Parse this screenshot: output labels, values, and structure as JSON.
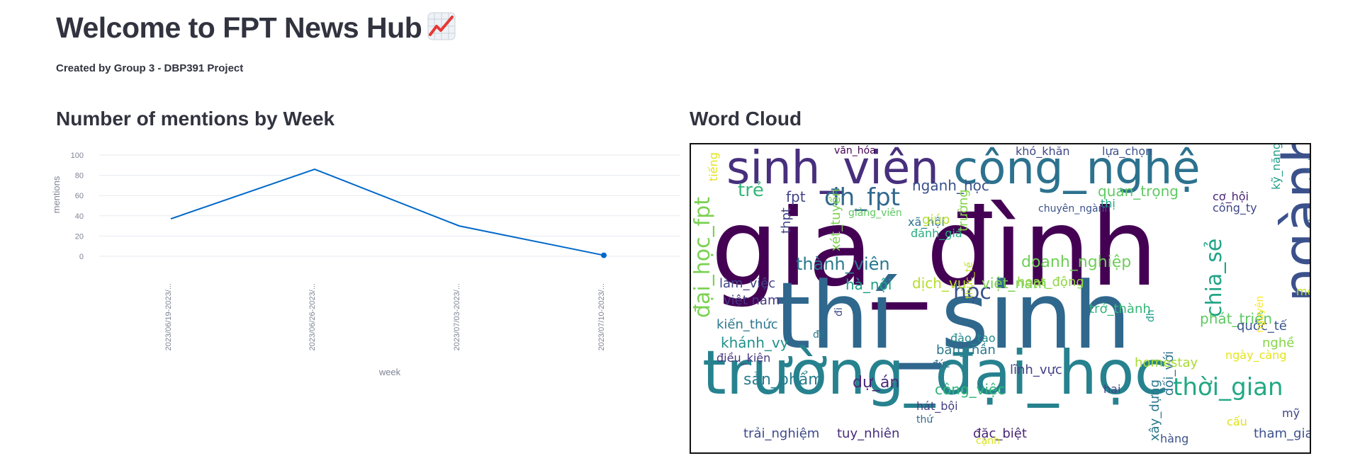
{
  "header": {
    "title": "Welcome to FPT News Hub",
    "emoji_icon": "chart-increasing-icon",
    "subtitle": "Created by Group 3 - DBP391 Project"
  },
  "chart_section": {
    "title": "Number of mentions by Week"
  },
  "wordcloud_section": {
    "title": "Word Cloud"
  },
  "chart_data": {
    "type": "line",
    "x": [
      "2023/06/19-2023/...",
      "2023/06/26-2023/...",
      "2023/07/03-2023/...",
      "2023/07/10-2023/..."
    ],
    "series": [
      {
        "values": [
          37,
          86,
          30,
          1
        ],
        "color": "#0068c9"
      }
    ],
    "xlabel": "week",
    "ylabel": "mentions",
    "ylim": [
      0,
      100
    ],
    "yticks": [
      0,
      20,
      40,
      60,
      80,
      100
    ],
    "grid": true,
    "highlight_last_point": true
  },
  "wordcloud": {
    "words": [
      {
        "t": "gia_đình",
        "c": "#440154"
      },
      {
        "t": "thí_sinh",
        "c": "#30678d"
      },
      {
        "t": "trường_đại_học",
        "c": "#26828e"
      },
      {
        "t": "sinh_viên",
        "c": "#472f7d"
      },
      {
        "t": "công_nghệ",
        "c": "#2c728e"
      },
      {
        "t": "ngành",
        "c": "#3b518b"
      },
      {
        "t": "đại_học_fpt",
        "c": "#7ad151"
      },
      {
        "t": "chia_sẻ",
        "c": "#20a486"
      },
      {
        "t": "thời_gian",
        "c": "#22a884"
      },
      {
        "t": "đh_fpt",
        "c": "#31688e"
      },
      {
        "t": "học",
        "c": "#3b518b"
      },
      {
        "t": "trẻ",
        "c": "#35b779"
      },
      {
        "t": "fpt",
        "c": "#414487"
      },
      {
        "t": "ngành_học",
        "c": "#3b518b"
      },
      {
        "t": "quan_trọng",
        "c": "#5ec962"
      },
      {
        "t": "thành_viên",
        "c": "#2a788e"
      },
      {
        "t": "doanh_nghiệp",
        "c": "#6ece58"
      },
      {
        "t": "việt_nam",
        "c": "#7ad151"
      },
      {
        "t": "dịch_vụ",
        "c": "#b5de2b"
      },
      {
        "t": "hà_nội",
        "c": "#1fa088"
      },
      {
        "t": "làm_việc",
        "c": "#414487"
      },
      {
        "t": "phát_triển",
        "c": "#5ec962"
      },
      {
        "t": "sản_phẩm",
        "c": "#287c8e"
      },
      {
        "t": "dự_án",
        "c": "#482878"
      },
      {
        "t": "công_việc",
        "c": "#31b57b"
      },
      {
        "t": "trải_nghiệm",
        "c": "#3e4989"
      },
      {
        "t": "tuy_nhiên",
        "c": "#472c7a"
      },
      {
        "t": "đặc_biệt",
        "c": "#482475"
      },
      {
        "t": "tham_gia",
        "c": "#3b528b"
      },
      {
        "t": "khánh_vy",
        "c": "#21918c"
      },
      {
        "t": "kiến_thức",
        "c": "#2a788e"
      },
      {
        "t": "việt nam",
        "c": "#443983"
      },
      {
        "t": "lĩnh_vực",
        "c": "#424086"
      },
      {
        "t": "bản_thân",
        "c": "#2a788e"
      },
      {
        "t": "đào_tạo",
        "c": "#238a8d"
      },
      {
        "t": "hoạt_động",
        "c": "#90d743"
      },
      {
        "t": "trở_thành",
        "c": "#35b779"
      },
      {
        "t": "quốc_tế",
        "c": "#39568c"
      },
      {
        "t": "nghề",
        "c": "#86d549"
      },
      {
        "t": "văn_hóa",
        "c": "#440154"
      },
      {
        "t": "khó_khăn",
        "c": "#3f4788"
      },
      {
        "t": "lựa_chọn",
        "c": "#3b528b"
      },
      {
        "t": "kỹ_năng",
        "c": "#1f9e89"
      },
      {
        "t": "chương_trình",
        "c": "#23898e"
      },
      {
        "t": "cơ_hội",
        "c": "#482475"
      },
      {
        "t": "công_ty",
        "c": "#3f4788"
      },
      {
        "t": "xã_hội",
        "c": "#2c728e"
      },
      {
        "t": "đánh_giá",
        "c": "#26ad81"
      },
      {
        "t": "thpt",
        "c": "#414487"
      },
      {
        "t": "xét_tuyển",
        "c": "#7ad151"
      },
      {
        "t": "giúp",
        "c": "#b5de2b"
      },
      {
        "t": "trường",
        "c": "#84d44b"
      },
      {
        "t": "thực_tế",
        "c": "#c2df23"
      },
      {
        "t": "thị",
        "c": "#23a983"
      },
      {
        "t": "chuyên_ngành",
        "c": "#3b528b"
      },
      {
        "t": "nguyên",
        "c": "#fde725"
      },
      {
        "t": "đh",
        "c": "#1f9e89"
      },
      {
        "t": "đối_với",
        "c": "#2c728e"
      },
      {
        "t": "xây_dựng",
        "c": "#2a788e"
      },
      {
        "t": "homestay",
        "c": "#a8db34"
      },
      {
        "t": "hai",
        "c": "#404688"
      },
      {
        "t": "hát_bội",
        "c": "#433e85"
      },
      {
        "t": "thứ",
        "c": "#31688e"
      },
      {
        "t": "đức",
        "c": "#2e6e8e"
      },
      {
        "t": "cạnh",
        "c": "#d8e219"
      },
      {
        "t": "hàng",
        "c": "#3b528b"
      },
      {
        "t": "cấu",
        "c": "#dde318"
      },
      {
        "t": "mỹ",
        "c": "#414487"
      },
      {
        "t": "môi_trường",
        "c": "#bddf26"
      },
      {
        "t": "giảng_viên",
        "c": "#5ec962"
      },
      {
        "t": "điều_kiện",
        "c": "#453781"
      },
      {
        "t": "tiếng",
        "c": "#e5e419"
      },
      {
        "t": "đi",
        "c": "#3e4989"
      },
      {
        "t": "đề",
        "c": "#2a788e"
      },
      {
        "t": "ngày_càng",
        "c": "#e5e419"
      }
    ]
  }
}
